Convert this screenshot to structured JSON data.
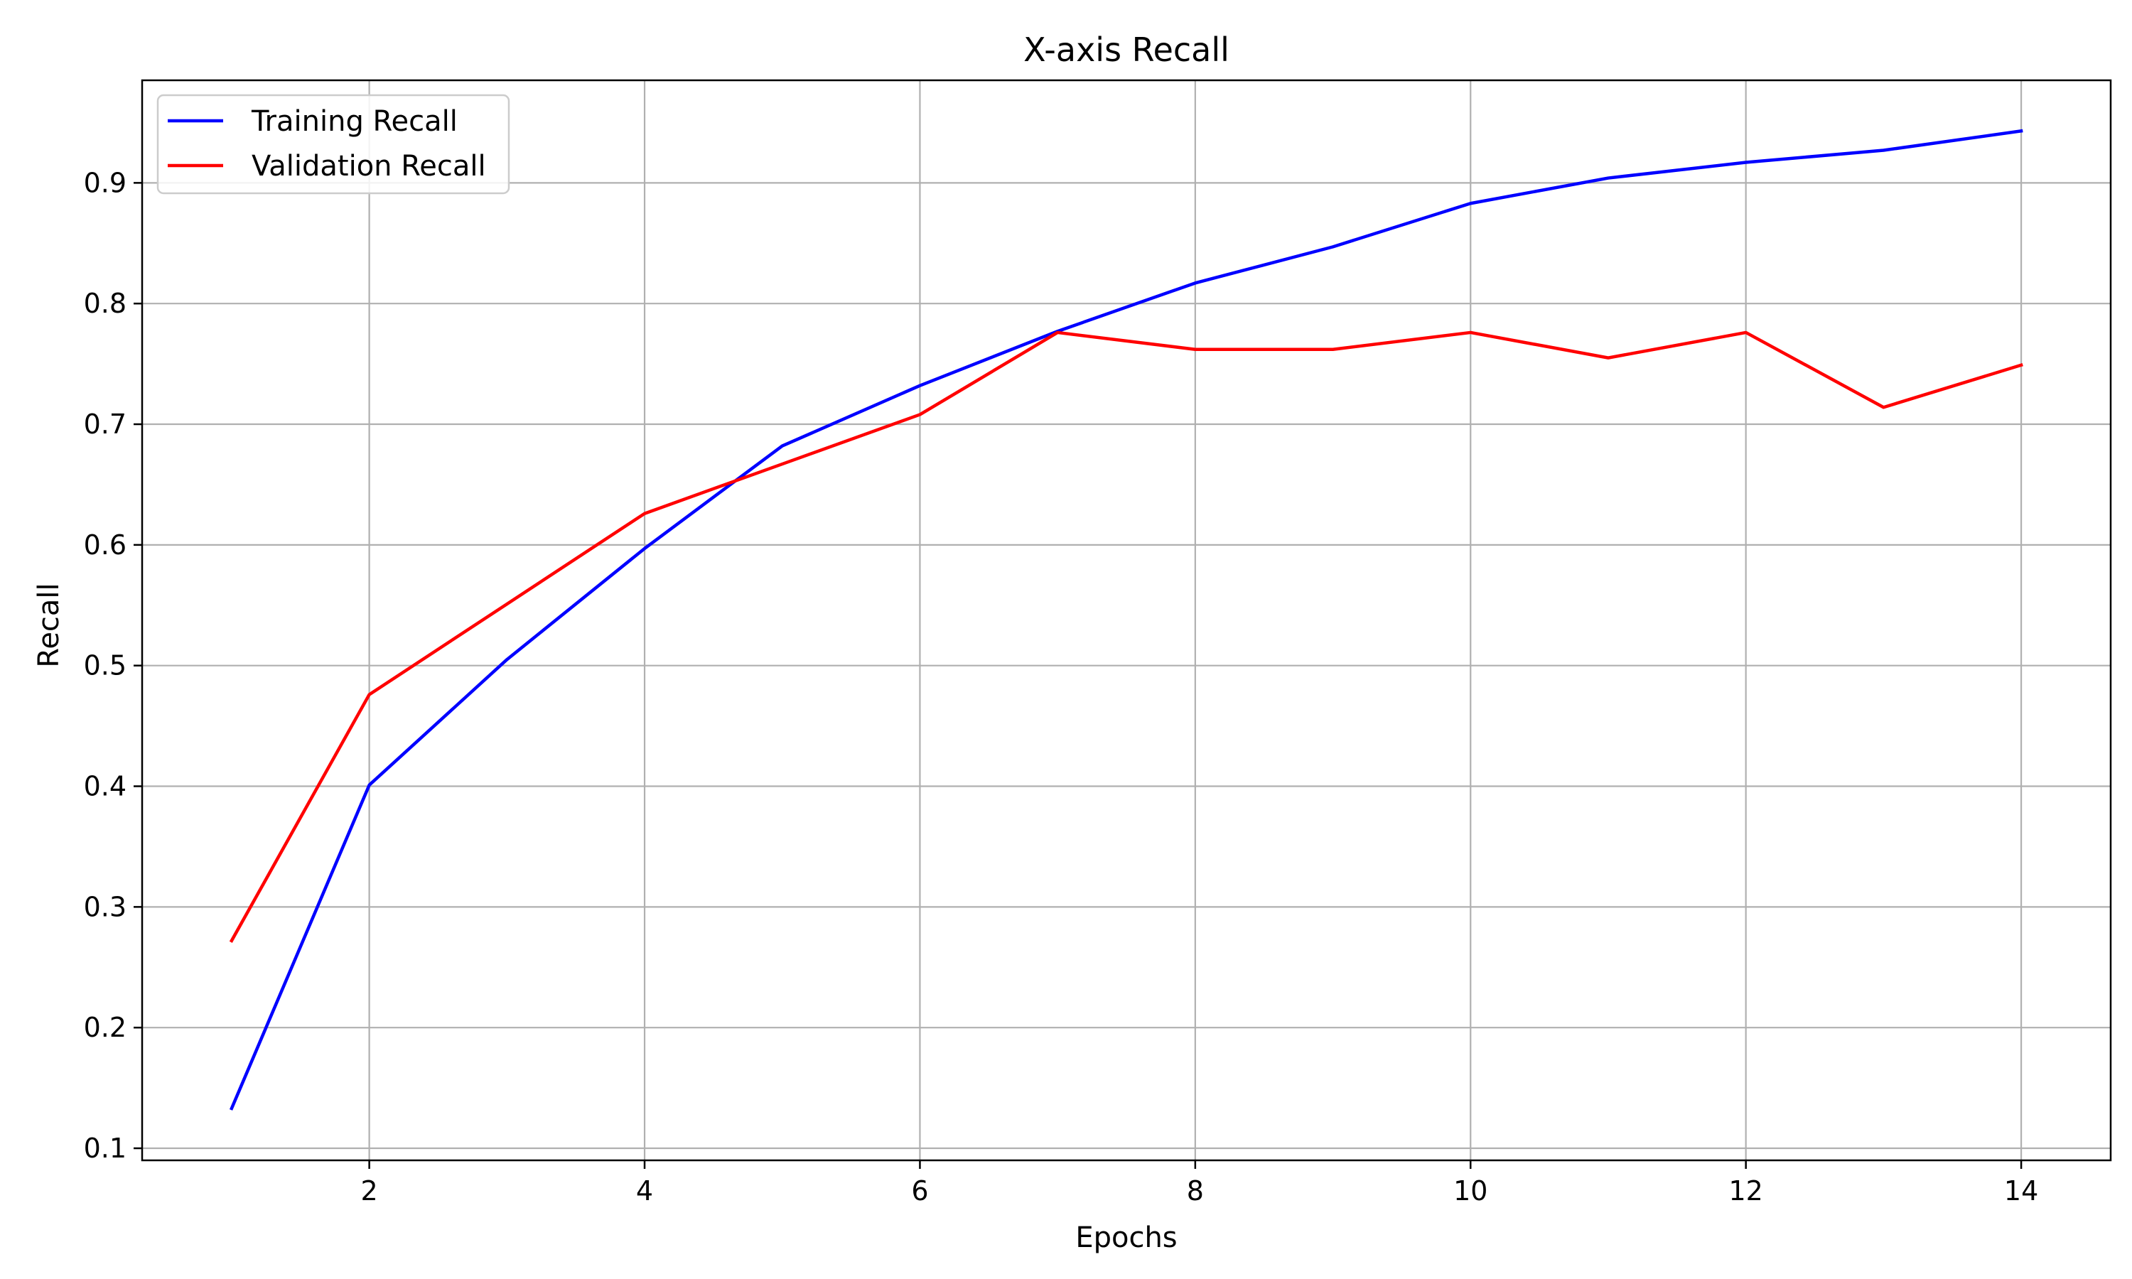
{
  "chart_data": {
    "type": "line",
    "title": "X-axis Recall",
    "xlabel": "Epochs",
    "ylabel": "Recall",
    "x": [
      1,
      2,
      3,
      4,
      5,
      6,
      7,
      8,
      9,
      10,
      11,
      12,
      13,
      14
    ],
    "xlim": [
      0.35,
      14.65
    ],
    "ylim": [
      0.09,
      0.985
    ],
    "xticks": [
      2,
      4,
      6,
      8,
      10,
      12,
      14
    ],
    "yticks": [
      0.1,
      0.2,
      0.3,
      0.4,
      0.5,
      0.6,
      0.7,
      0.8,
      0.9
    ],
    "grid": true,
    "legend_position": "top-left",
    "series": [
      {
        "name": "Training Recall",
        "color": "#0000ff",
        "values": [
          0.133,
          0.401,
          0.505,
          0.597,
          0.682,
          0.732,
          0.777,
          0.817,
          0.847,
          0.883,
          0.904,
          0.917,
          0.927,
          0.943
        ]
      },
      {
        "name": "Validation Recall",
        "color": "#ff0000",
        "values": [
          0.272,
          0.476,
          0.551,
          0.626,
          0.667,
          0.708,
          0.776,
          0.762,
          0.762,
          0.776,
          0.755,
          0.776,
          0.714,
          0.749
        ]
      }
    ]
  }
}
